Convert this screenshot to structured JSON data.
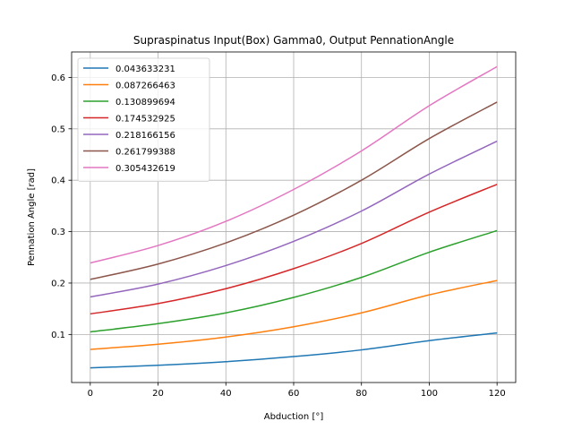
{
  "chart_data": {
    "type": "line",
    "title": "Supraspinatus Input(Box) Gamma0, Output PennationAngle",
    "xlabel": "Abduction [°]",
    "ylabel": "Pennation Angle [rad]",
    "xlim": [
      -5.5,
      125.5
    ],
    "ylim": [
      0.0065,
      0.6495
    ],
    "xticks": [
      0,
      20,
      40,
      60,
      80,
      100,
      120
    ],
    "yticks": [
      0.1,
      0.2,
      0.3,
      0.4,
      0.5,
      0.6
    ],
    "grid": true,
    "legend_position": "upper-left",
    "x": [
      0,
      20,
      40,
      60,
      80,
      100,
      120
    ],
    "series": [
      {
        "name": "0.043633231",
        "color": "#1f77b4",
        "values": [
          0.035,
          0.04,
          0.047,
          0.057,
          0.07,
          0.088,
          0.103
        ]
      },
      {
        "name": "0.087266463",
        "color": "#ff7f0e",
        "values": [
          0.071,
          0.081,
          0.095,
          0.115,
          0.142,
          0.177,
          0.205
        ]
      },
      {
        "name": "0.130899694",
        "color": "#2ca02c",
        "values": [
          0.105,
          0.121,
          0.142,
          0.172,
          0.211,
          0.26,
          0.302
        ]
      },
      {
        "name": "0.174532925",
        "color": "#d62728",
        "values": [
          0.14,
          0.16,
          0.189,
          0.228,
          0.277,
          0.338,
          0.392
        ]
      },
      {
        "name": "0.218166156",
        "color": "#9467bd",
        "values": [
          0.173,
          0.198,
          0.234,
          0.281,
          0.34,
          0.412,
          0.476
        ]
      },
      {
        "name": "0.261799388",
        "color": "#8c564b",
        "values": [
          0.207,
          0.237,
          0.278,
          0.332,
          0.4,
          0.481,
          0.552
        ]
      },
      {
        "name": "0.305432619",
        "color": "#e377c2",
        "values": [
          0.239,
          0.273,
          0.32,
          0.382,
          0.457,
          0.545,
          0.621
        ]
      }
    ]
  }
}
